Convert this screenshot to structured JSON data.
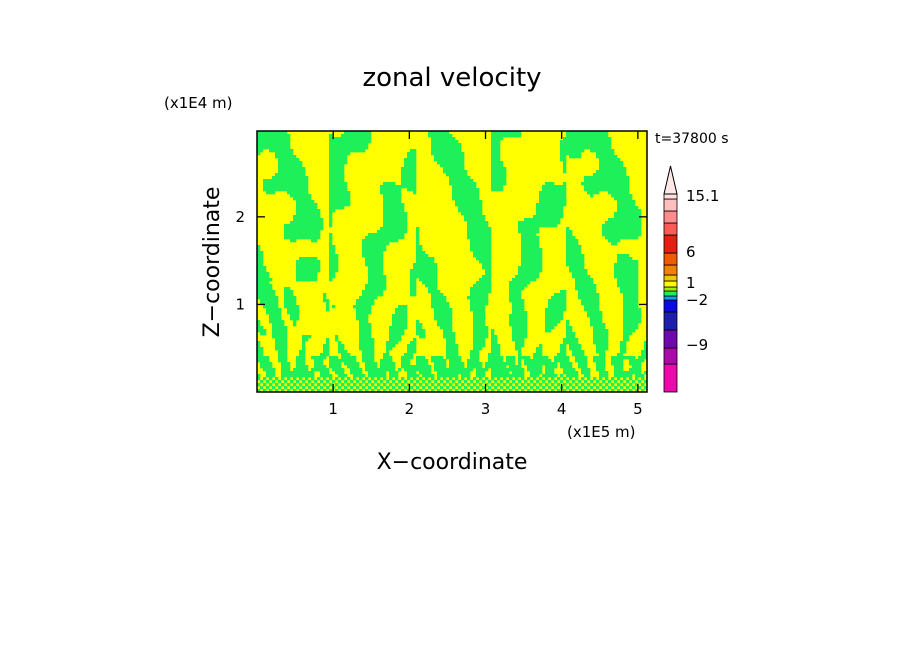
{
  "chart_data": {
    "type": "heatmap",
    "title": "zonal velocity",
    "xlabel": "X−coordinate",
    "ylabel": "Z−coordinate",
    "x_scale_label": "(x1E5 m)",
    "y_scale_label": "(x1E4 m)",
    "time_label": "t=37800 s",
    "xlim": [
      0,
      5.12
    ],
    "ylim": [
      0,
      2.98
    ],
    "x_ticks": [
      1,
      2,
      3,
      4,
      5
    ],
    "y_ticks": [
      1,
      2
    ],
    "x_tick_labels": [
      "1",
      "2",
      "3",
      "4",
      "5"
    ],
    "y_tick_labels": [
      "1",
      "2"
    ],
    "dominant_colors": [
      "#ffff00",
      "#1ef05a"
    ],
    "colorbar": {
      "bands": [
        {
          "color": "#ee0aaa"
        },
        {
          "color": "#aa0aaa"
        },
        {
          "color": "#6e0aaa"
        },
        {
          "color": "#1e1eaa"
        },
        {
          "color": "#0a0ae6"
        },
        {
          "color": "#14a0f0"
        },
        {
          "color": "#1ef05a"
        },
        {
          "color": "#a0f000"
        },
        {
          "color": "#ffff00"
        },
        {
          "color": "#f0c800"
        },
        {
          "color": "#f08200"
        },
        {
          "color": "#f05a00"
        },
        {
          "color": "#e61e14"
        },
        {
          "color": "#ff5a5a"
        },
        {
          "color": "#ff8c8c"
        },
        {
          "color": "#ffbebe"
        },
        {
          "color": "#ffe0e0"
        }
      ],
      "labels": [
        "15.1",
        "6",
        "1",
        "−2",
        "−9"
      ]
    }
  }
}
